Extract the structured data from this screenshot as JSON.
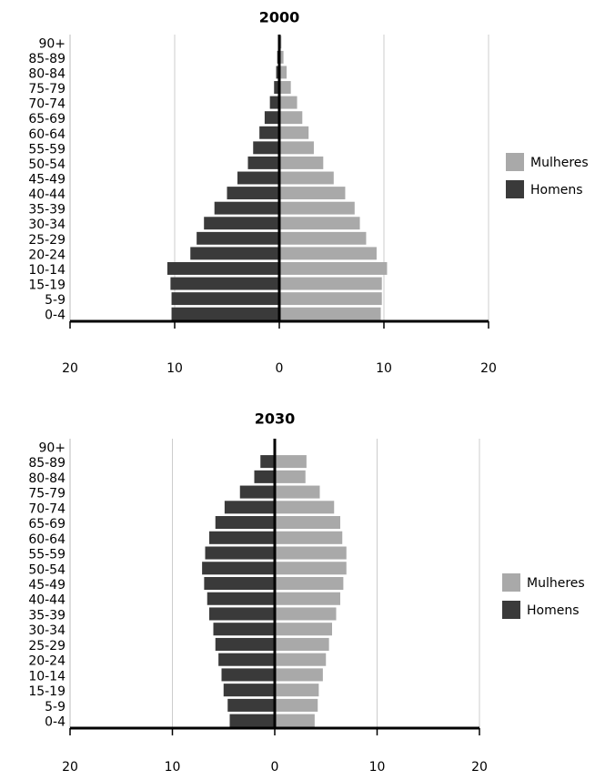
{
  "chart_data": [
    {
      "type": "pyramid",
      "title": "2000",
      "categories": [
        "90+",
        "85-89",
        "80-84",
        "75-79",
        "70-74",
        "65-69",
        "60-64",
        "55-59",
        "50-54",
        "45-49",
        "40-44",
        "35-39",
        "30-34",
        "25-29",
        "20-24",
        "10-14",
        "15-19",
        "5-9",
        "0-4"
      ],
      "series": [
        {
          "name": "Mulheres",
          "color": "#a9a9a9",
          "values": [
            0.2,
            0.4,
            0.7,
            1.1,
            1.7,
            2.2,
            2.8,
            3.3,
            4.2,
            5.2,
            6.3,
            7.2,
            7.7,
            8.3,
            9.3,
            10.3,
            9.8,
            9.8,
            9.7
          ]
        },
        {
          "name": "Homens",
          "color": "#3a3a3a",
          "values": [
            -0.1,
            -0.2,
            -0.3,
            -0.5,
            -0.9,
            -1.4,
            -1.9,
            -2.5,
            -3.0,
            -4.0,
            -5.0,
            -6.2,
            -7.2,
            -7.9,
            -8.5,
            -10.7,
            -10.4,
            -10.3,
            -10.3
          ]
        }
      ],
      "xlim": [
        -20,
        20
      ],
      "xticks": [
        {
          "value": -20,
          "label": "20"
        },
        {
          "value": -10,
          "label": "10"
        },
        0,
        10,
        20
      ],
      "grid": true,
      "legend": "right"
    },
    {
      "type": "pyramid",
      "title": "2030",
      "categories": [
        "90+",
        "85-89",
        "80-84",
        "75-79",
        "70-74",
        "65-69",
        "60-64",
        "55-59",
        "50-54",
        "45-49",
        "40-44",
        "35-39",
        "30-34",
        "25-29",
        "20-24",
        "10-14",
        "15-19",
        "5-9",
        "0-4"
      ],
      "series": [
        {
          "name": "Mulheres",
          "color": "#a9a9a9",
          "values": [
            0,
            3.1,
            3.0,
            4.4,
            5.8,
            6.4,
            6.6,
            7.0,
            7.0,
            6.7,
            6.4,
            6.0,
            5.6,
            5.3,
            5.0,
            4.7,
            4.3,
            4.2,
            3.9
          ]
        },
        {
          "name": "Homens",
          "color": "#3a3a3a",
          "values": [
            0,
            -1.4,
            -2.0,
            -3.4,
            -4.9,
            -5.8,
            -6.4,
            -6.8,
            -7.1,
            -6.9,
            -6.6,
            -6.4,
            -6.0,
            -5.8,
            -5.5,
            -5.2,
            -5.0,
            -4.6,
            -4.4
          ]
        }
      ],
      "xlim": [
        -20,
        20
      ],
      "xticks": [
        {
          "value": -20,
          "label": "20"
        },
        {
          "value": -10,
          "label": "10"
        },
        0,
        10,
        20
      ],
      "grid": true,
      "legend": "right"
    }
  ]
}
